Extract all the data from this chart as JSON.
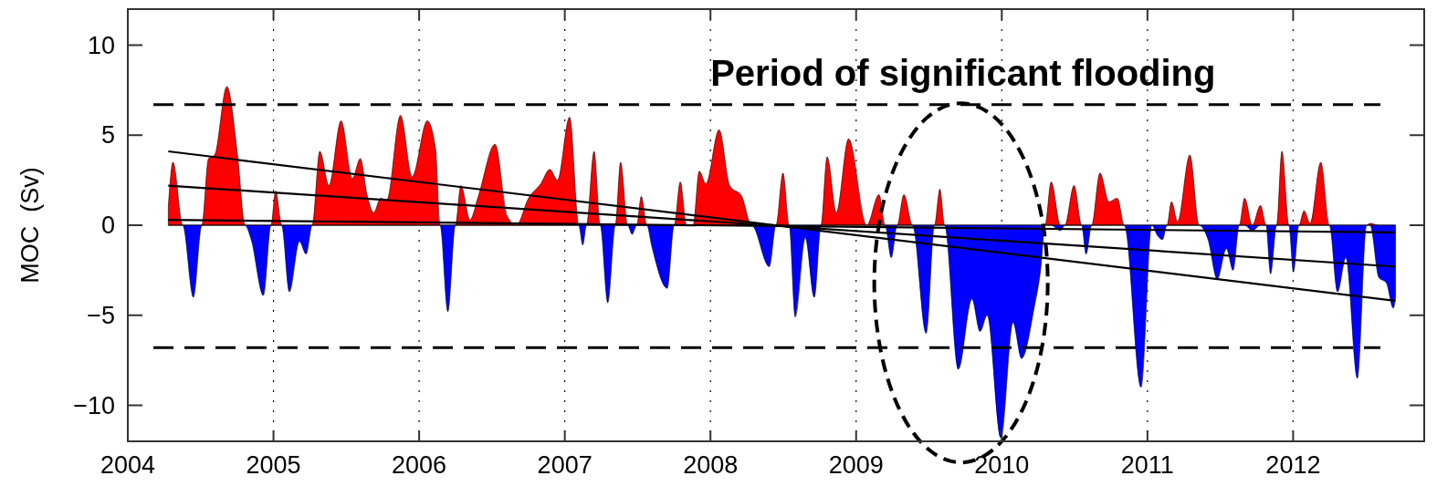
{
  "chart_data": {
    "type": "area",
    "ylabel": "MOC  (Sv)",
    "annotations": [
      "Period of significant flooding"
    ],
    "x": [
      2004.278,
      2004.31,
      2004.377,
      2004.45,
      2004.508,
      2004.554,
      2004.596,
      2004.68,
      2004.753,
      2004.805,
      2004.847,
      2004.931,
      2004.983,
      2005.015,
      2005.056,
      2005.109,
      2005.178,
      2005.224,
      2005.266,
      2005.318,
      2005.381,
      2005.464,
      2005.542,
      2005.596,
      2005.642,
      2005.688,
      2005.736,
      2005.778,
      2005.872,
      2005.952,
      2006.056,
      2006.113,
      2006.144,
      2006.197,
      2006.249,
      2006.287,
      2006.349,
      2006.406,
      2006.521,
      2006.605,
      2006.667,
      2006.751,
      2006.835,
      2006.897,
      2006.95,
      2007.033,
      2007.096,
      2007.123,
      2007.149,
      2007.201,
      2007.243,
      2007.295,
      2007.347,
      2007.383,
      2007.431,
      2007.462,
      2007.494,
      2007.525,
      2007.563,
      2007.598,
      2007.703,
      2007.751,
      2007.793,
      2007.835,
      2007.881,
      2007.923,
      2007.969,
      2008.059,
      2008.132,
      2008.215,
      2008.282,
      2008.404,
      2008.45,
      2008.498,
      2008.54,
      2008.582,
      2008.651,
      2008.713,
      2008.759,
      2008.801,
      2008.864,
      2008.948,
      2009.073,
      2009.157,
      2009.199,
      2009.241,
      2009.282,
      2009.328,
      2009.387,
      2009.481,
      2009.538,
      2009.575,
      2009.607,
      2009.701,
      2009.795,
      2009.851,
      2009.9,
      2009.994,
      2010.077,
      2010.136,
      2010.224,
      2010.266,
      2010.297,
      2010.339,
      2010.402,
      2010.433,
      2010.496,
      2010.548,
      2010.579,
      2010.617,
      2010.674,
      2010.736,
      2010.793,
      2010.841,
      2010.956,
      2011.029,
      2011.071,
      2011.103,
      2011.134,
      2011.165,
      2011.207,
      2011.291,
      2011.354,
      2011.416,
      2011.479,
      2011.542,
      2011.588,
      2011.63,
      2011.667,
      2011.72,
      2011.776,
      2011.814,
      2011.845,
      2011.887,
      2011.923,
      2011.971,
      2012.002,
      2012.04,
      2012.075,
      2012.117,
      2012.19,
      2012.249,
      2012.305,
      2012.362,
      2012.441,
      2012.504,
      2012.529,
      2012.588,
      2012.64,
      2012.688,
      2012.703
    ],
    "series": [
      {
        "type": "area",
        "color": "#ff0000",
        "values": [
          1.0,
          3.5,
          0,
          0,
          0,
          3.7,
          3.9,
          7.7,
          3.9,
          0,
          0,
          0,
          0,
          1.9,
          0,
          0,
          0,
          0,
          0,
          4.1,
          2.2,
          5.8,
          2.6,
          3.7,
          1.7,
          0.7,
          1.5,
          1.4,
          6.1,
          2.7,
          5.8,
          4.2,
          0,
          0,
          0,
          2.2,
          0.3,
          1.6,
          4.5,
          0.5,
          0,
          1.5,
          2.3,
          3.1,
          2.5,
          6.0,
          0,
          0,
          0,
          4.1,
          0,
          0,
          0,
          3.5,
          0,
          0,
          0,
          1.6,
          0,
          0,
          0,
          0,
          2.4,
          0,
          0,
          3.0,
          2.3,
          5.3,
          2.2,
          1.6,
          0,
          0,
          0,
          2.9,
          0,
          0,
          0,
          0,
          0,
          3.8,
          0.7,
          4.8,
          0,
          1.7,
          0,
          0,
          0,
          1.7,
          0,
          0,
          0,
          2.0,
          0,
          0,
          0,
          0,
          0,
          0,
          0,
          0,
          0,
          0,
          0,
          2.4,
          0,
          0,
          2.2,
          0,
          0,
          0,
          2.9,
          1.3,
          1.5,
          0,
          0,
          0,
          0,
          0,
          0,
          1.3,
          0.2,
          3.9,
          0,
          0,
          0,
          0,
          0,
          0,
          1.5,
          0,
          1.1,
          0,
          0,
          0,
          4.1,
          0,
          0,
          0,
          0.8,
          0.1,
          3.5,
          0,
          0,
          0,
          0,
          0,
          0.1,
          0,
          0,
          0,
          0
        ]
      },
      {
        "type": "area",
        "color": "#0000ff",
        "values": [
          0,
          0,
          0,
          -4.0,
          0,
          0,
          0,
          0,
          0,
          0,
          -0.8,
          -3.9,
          0,
          0,
          0,
          -3.7,
          -0.9,
          -1.6,
          0,
          0,
          0,
          0,
          0,
          0,
          0,
          0,
          0,
          0,
          0,
          0,
          0,
          0,
          0,
          -4.8,
          0,
          0,
          0,
          0,
          0,
          0,
          0,
          0,
          0,
          0,
          0,
          0,
          0,
          -1.1,
          0,
          0,
          0,
          -4.3,
          0,
          0,
          0,
          -0.5,
          0,
          0,
          0,
          -1.2,
          -3.5,
          0,
          0,
          0,
          0,
          0,
          0,
          0,
          0,
          0,
          0,
          -2.3,
          0,
          0,
          0,
          -5.1,
          -0.7,
          -4.0,
          0,
          0,
          0,
          0,
          0,
          0,
          0,
          -1.8,
          0,
          0,
          0,
          -6.0,
          0,
          0,
          0,
          -8.0,
          -4.1,
          -5.9,
          -5.0,
          -11.8,
          -5.4,
          -7.4,
          -4.5,
          -2.5,
          0,
          0,
          -0.3,
          0,
          0,
          0,
          -1.6,
          0,
          0,
          0,
          0,
          0,
          -9.0,
          0,
          -0.6,
          -0.8,
          0,
          0,
          0,
          0,
          0,
          -0.8,
          -3.0,
          -1.3,
          -2.5,
          0,
          0,
          -0.3,
          0,
          0,
          -2.7,
          0,
          0,
          0,
          -2.6,
          0,
          0,
          0,
          0,
          0,
          -3.7,
          -1.8,
          -8.5,
          0,
          0,
          -2.9,
          -3.2,
          -4.6,
          -4.0
        ]
      },
      {
        "type": "line",
        "color": "#000000",
        "values": [
          4.1,
          null,
          null,
          null,
          null,
          null,
          null,
          null,
          null,
          null,
          null,
          null,
          null,
          null,
          null,
          null,
          null,
          null,
          null,
          null,
          null,
          null,
          null,
          null,
          null,
          null,
          null,
          null,
          null,
          null,
          null,
          null,
          null,
          null,
          null,
          null,
          null,
          null,
          null,
          null,
          null,
          null,
          null,
          null,
          null,
          null,
          null,
          null,
          null,
          null,
          null,
          null,
          null,
          null,
          null,
          null,
          null,
          null,
          null,
          null,
          null,
          null,
          null,
          null,
          null,
          null,
          null,
          null,
          null,
          null,
          null,
          null,
          null,
          null,
          null,
          null,
          null,
          null,
          null,
          null,
          null,
          null,
          null,
          null,
          null,
          null,
          null,
          null,
          null,
          null,
          null,
          null,
          null,
          null,
          null,
          null,
          null,
          null,
          null,
          null,
          null,
          null,
          null,
          null,
          null,
          null,
          null,
          null,
          null,
          null,
          null,
          null,
          null,
          null,
          null,
          null,
          null,
          null,
          null,
          null,
          null,
          null,
          null,
          null,
          null,
          null,
          null,
          null,
          null,
          null,
          null,
          null,
          null,
          null,
          null,
          null,
          null,
          null,
          null,
          null,
          null,
          null,
          null,
          null,
          null,
          null,
          null,
          null,
          null,
          null,
          -4.2
        ]
      },
      {
        "type": "line",
        "color": "#000000",
        "values": [
          2.2,
          null,
          null,
          null,
          null,
          null,
          null,
          null,
          null,
          null,
          null,
          null,
          null,
          null,
          null,
          null,
          null,
          null,
          null,
          null,
          null,
          null,
          null,
          null,
          null,
          null,
          null,
          null,
          null,
          null,
          null,
          null,
          null,
          null,
          null,
          null,
          null,
          null,
          null,
          null,
          null,
          null,
          null,
          null,
          null,
          null,
          null,
          null,
          null,
          null,
          null,
          null,
          null,
          null,
          null,
          null,
          null,
          null,
          null,
          null,
          null,
          null,
          null,
          null,
          null,
          null,
          null,
          null,
          null,
          null,
          null,
          null,
          null,
          null,
          null,
          null,
          null,
          null,
          null,
          null,
          null,
          null,
          null,
          null,
          null,
          null,
          null,
          null,
          null,
          null,
          null,
          null,
          null,
          null,
          null,
          null,
          null,
          null,
          null,
          null,
          null,
          null,
          null,
          null,
          null,
          null,
          null,
          null,
          null,
          null,
          null,
          null,
          null,
          null,
          null,
          null,
          null,
          null,
          null,
          null,
          null,
          null,
          null,
          null,
          null,
          null,
          null,
          null,
          null,
          null,
          null,
          null,
          null,
          null,
          null,
          null,
          null,
          null,
          null,
          null,
          null,
          null,
          null,
          null,
          null,
          null,
          null,
          null,
          null,
          null,
          -2.3
        ]
      },
      {
        "type": "line",
        "color": "#000000",
        "values": [
          0.3,
          null,
          null,
          null,
          null,
          null,
          null,
          null,
          null,
          null,
          null,
          null,
          null,
          null,
          null,
          null,
          null,
          null,
          null,
          null,
          null,
          null,
          null,
          null,
          null,
          null,
          null,
          null,
          null,
          null,
          null,
          null,
          null,
          null,
          null,
          null,
          null,
          null,
          null,
          null,
          null,
          null,
          null,
          null,
          null,
          null,
          null,
          null,
          null,
          null,
          null,
          null,
          null,
          null,
          null,
          null,
          null,
          null,
          null,
          null,
          null,
          null,
          null,
          null,
          null,
          null,
          null,
          null,
          null,
          null,
          null,
          null,
          null,
          null,
          null,
          null,
          null,
          null,
          null,
          null,
          null,
          null,
          null,
          null,
          null,
          null,
          null,
          null,
          null,
          null,
          null,
          null,
          null,
          null,
          null,
          null,
          null,
          null,
          null,
          null,
          null,
          null,
          null,
          null,
          null,
          null,
          null,
          null,
          null,
          null,
          null,
          null,
          null,
          null,
          null,
          null,
          null,
          null,
          null,
          null,
          null,
          null,
          null,
          null,
          null,
          null,
          null,
          null,
          null,
          null,
          null,
          null,
          null,
          null,
          null,
          null,
          null,
          null,
          null,
          null,
          null,
          null,
          null,
          null,
          null,
          null,
          null,
          null,
          null,
          null,
          -0.4
        ]
      }
    ],
    "xlim": [
      2004,
      2012.9
    ],
    "xticks": [
      2004,
      2005,
      2006,
      2007,
      2008,
      2009,
      2010,
      2011,
      2012
    ],
    "ylim": [
      -12,
      12
    ],
    "yticks": [
      -10,
      -5,
      0,
      5,
      10
    ],
    "ref_lines": [
      {
        "axis": "y",
        "value": 6.7,
        "line_style": "dashed",
        "color": "#000000"
      },
      {
        "axis": "y",
        "value": -6.8,
        "line_style": "dashed",
        "color": "#000000"
      }
    ],
    "grid": "x"
  }
}
